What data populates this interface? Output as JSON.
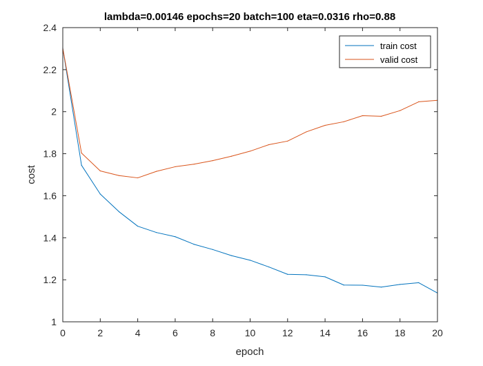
{
  "chart_data": {
    "type": "line",
    "title": "lambda=0.00146 epochs=20 batch=100 eta=0.0316 rho=0.88",
    "xlabel": "epoch",
    "ylabel": "cost",
    "xlim": [
      0,
      20
    ],
    "ylim": [
      1,
      2.4
    ],
    "xticks": [
      0,
      2,
      4,
      6,
      8,
      10,
      12,
      14,
      16,
      18,
      20
    ],
    "yticks": [
      1,
      1.2,
      1.4,
      1.6,
      1.8,
      2,
      2.2,
      2.4
    ],
    "yticklabels": [
      "1",
      "1.2",
      "1.4",
      "1.6",
      "1.8",
      "2",
      "2.2",
      "2.4"
    ],
    "grid": false,
    "legend_position": "top-right",
    "x": [
      0,
      1,
      2,
      3,
      4,
      5,
      6,
      7,
      8,
      9,
      10,
      11,
      12,
      13,
      14,
      15,
      16,
      17,
      18,
      19,
      20
    ],
    "series": [
      {
        "name": "train cost",
        "color": "#0072BD",
        "values": [
          2.302,
          1.745,
          1.608,
          1.524,
          1.455,
          1.425,
          1.405,
          1.369,
          1.344,
          1.315,
          1.293,
          1.261,
          1.226,
          1.224,
          1.214,
          1.175,
          1.174,
          1.165,
          1.178,
          1.186,
          1.137
        ]
      },
      {
        "name": "valid cost",
        "color": "#D95319",
        "values": [
          2.302,
          1.803,
          1.718,
          1.696,
          1.685,
          1.716,
          1.738,
          1.75,
          1.767,
          1.788,
          1.812,
          1.843,
          1.86,
          1.904,
          1.935,
          1.952,
          1.981,
          1.978,
          2.005,
          2.047,
          2.054
        ]
      }
    ]
  }
}
